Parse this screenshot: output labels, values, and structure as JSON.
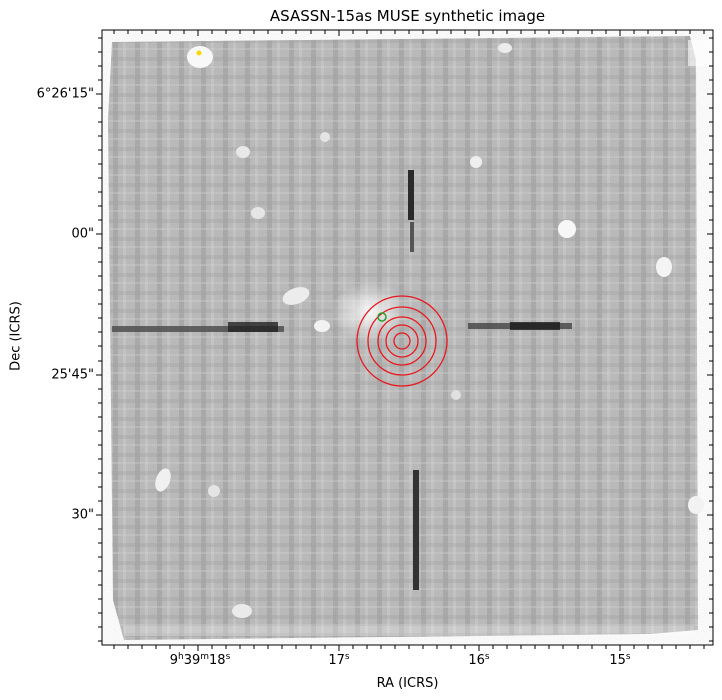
{
  "figure": {
    "title": "ASASSN-15as MUSE synthetic image",
    "xlabel": "RA (ICRS)",
    "ylabel": "Dec (ICRS)",
    "xticks": [
      {
        "h": "9",
        "m": "39",
        "s": "18",
        "display_h": "9h39m18s"
      },
      {
        "s": "17"
      },
      {
        "s": "16"
      },
      {
        "s": "15"
      }
    ],
    "yticks": [
      "6°26'15\"",
      "00\"",
      "25'45\"",
      "30\""
    ],
    "colormap": "gray",
    "overlay_colors": {
      "circles": "#e8181c",
      "small_circle": "#2ca02c",
      "star_marker": "#ffd700"
    }
  }
}
